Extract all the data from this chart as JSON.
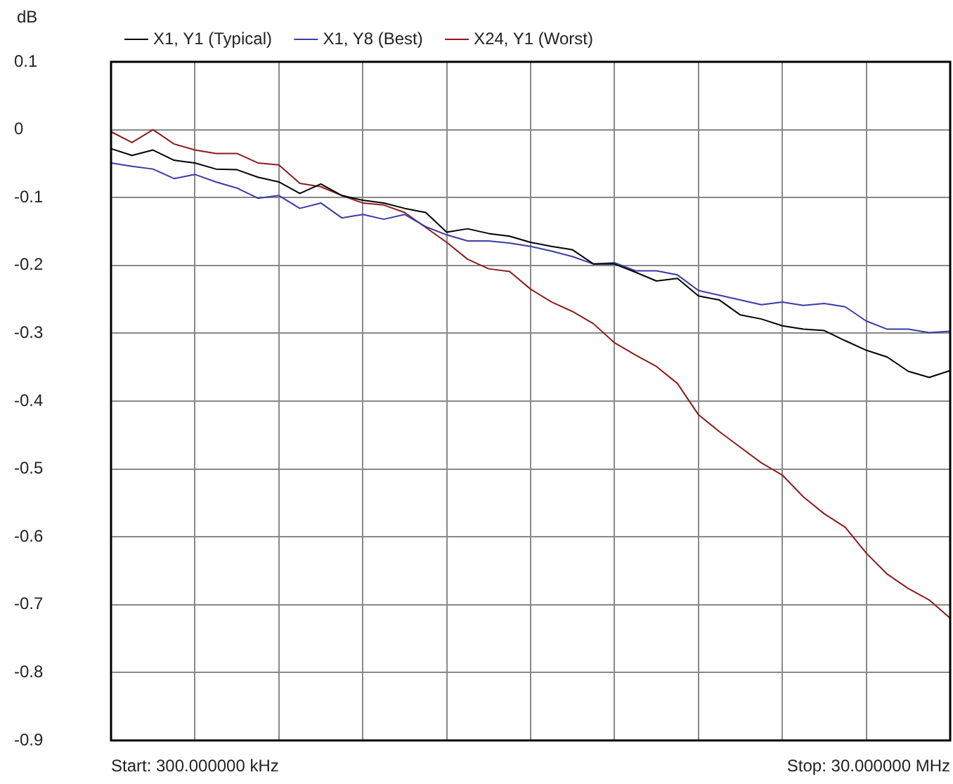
{
  "chart_data": {
    "type": "line",
    "ylabel": "dB",
    "categories": [
      null,
      null,
      null,
      null,
      null,
      null,
      null,
      null,
      null,
      null,
      null,
      null,
      null,
      null,
      null,
      null,
      null,
      null,
      null,
      null,
      null,
      null,
      null,
      null,
      null,
      null,
      null,
      null,
      null,
      null,
      null,
      null,
      null,
      null,
      null,
      null,
      null,
      null,
      null,
      null,
      null
    ],
    "ylim": [
      -0.9,
      0.1
    ],
    "yticks": [
      0.1,
      0,
      -0.1,
      -0.2,
      -0.3,
      -0.4,
      -0.5,
      -0.6,
      -0.7,
      -0.8,
      -0.9
    ],
    "grid": true,
    "legend": "top left",
    "tick_labels": "y",
    "marker": "none",
    "line_style": "solid",
    "series": [
      {
        "name": "X1, Y1 (Typical)",
        "color": "#000000",
        "values": [
          -0.028,
          -0.038,
          -0.03,
          -0.045,
          -0.049,
          -0.058,
          -0.059,
          -0.07,
          -0.077,
          -0.094,
          -0.08,
          -0.097,
          -0.104,
          -0.108,
          -0.116,
          -0.122,
          -0.151,
          -0.146,
          -0.153,
          -0.157,
          -0.166,
          -0.172,
          -0.177,
          -0.198,
          -0.198,
          -0.21,
          -0.223,
          -0.219,
          -0.245,
          -0.251,
          -0.273,
          -0.279,
          -0.289,
          -0.294,
          -0.296,
          -0.311,
          -0.325,
          -0.335,
          -0.356,
          -0.365,
          -0.355
        ]
      },
      {
        "name": "X1, Y8 (Best)",
        "color": "#3a3aa8",
        "values": [
          -0.049,
          -0.054,
          -0.058,
          -0.072,
          -0.066,
          -0.077,
          -0.086,
          -0.101,
          -0.097,
          -0.116,
          -0.108,
          -0.13,
          -0.125,
          -0.132,
          -0.125,
          -0.143,
          -0.155,
          -0.164,
          -0.164,
          -0.167,
          -0.172,
          -0.179,
          -0.187,
          -0.198,
          -0.196,
          -0.208,
          -0.208,
          -0.214,
          -0.237,
          -0.244,
          -0.251,
          -0.258,
          -0.254,
          -0.259,
          -0.256,
          -0.261,
          -0.282,
          -0.294,
          -0.294,
          -0.299,
          -0.297
        ]
      },
      {
        "name": "X24, Y1 (Worst)",
        "color": "#8b1c1c",
        "values": [
          -0.003,
          -0.019,
          0.0,
          -0.021,
          -0.03,
          -0.035,
          -0.035,
          -0.049,
          -0.052,
          -0.079,
          -0.084,
          -0.097,
          -0.108,
          -0.111,
          -0.122,
          -0.144,
          -0.166,
          -0.191,
          -0.205,
          -0.209,
          -0.235,
          -0.254,
          -0.268,
          -0.286,
          -0.314,
          -0.332,
          -0.349,
          -0.374,
          -0.42,
          -0.445,
          -0.468,
          -0.491,
          -0.509,
          -0.541,
          -0.566,
          -0.586,
          -0.624,
          -0.655,
          -0.676,
          -0.693,
          -0.72
        ]
      }
    ],
    "annotations": [
      "Start: 300.000000 kHz",
      "Stop: 30.000000 MHz"
    ]
  }
}
